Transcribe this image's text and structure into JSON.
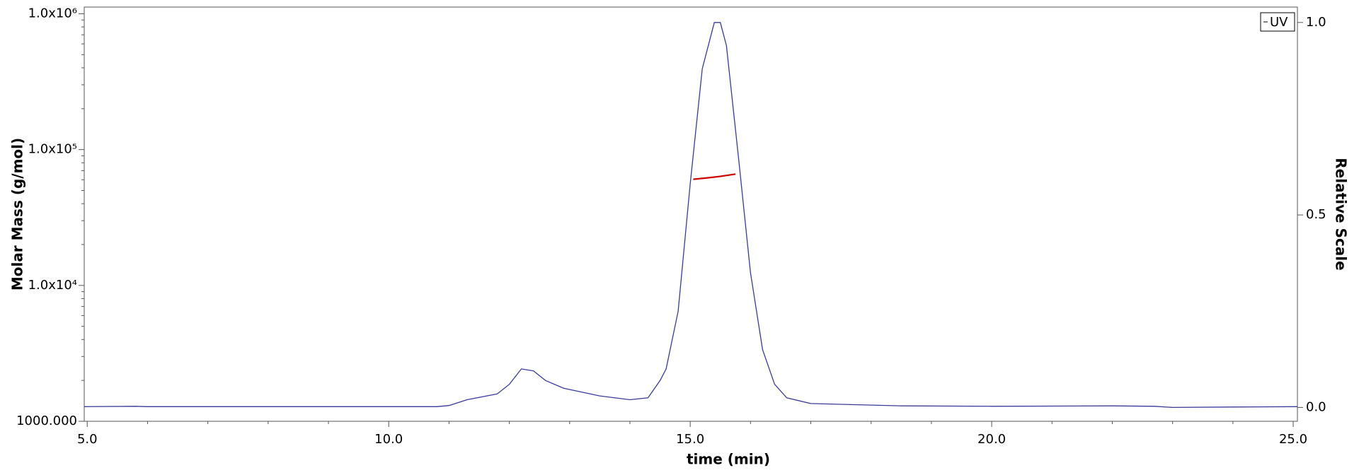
{
  "chart_data": {
    "type": "line",
    "xlabel": "time (min)",
    "ylabel": "Molar Mass (g/mol)",
    "y2label": "Relative Scale",
    "xlim": [
      4.95,
      25.07
    ],
    "xticks": [
      {
        "value": 5,
        "label": "5.0"
      },
      {
        "value": 10,
        "label": "10.0"
      },
      {
        "value": 15,
        "label": "15.0"
      },
      {
        "value": 20,
        "label": "20.0"
      },
      {
        "value": 25,
        "label": "25.0"
      }
    ],
    "xminorticks": [
      6,
      7,
      8,
      9,
      11,
      12,
      13,
      14,
      16,
      17,
      18,
      19,
      21,
      22,
      23,
      24
    ],
    "ylim": [
      1000,
      1120000
    ],
    "yscale": "log",
    "yticks": [
      {
        "value": 1000,
        "label": "1000.000"
      },
      {
        "value": 10000,
        "label": "1.0x10⁴"
      },
      {
        "value": 100000,
        "label": "1.0x10⁵"
      },
      {
        "value": 1000000,
        "label": "1.0x10⁶"
      }
    ],
    "yminorticks": [
      2000,
      3000,
      4000,
      5000,
      6000,
      7000,
      8000,
      9000,
      20000,
      30000,
      40000,
      50000,
      60000,
      70000,
      80000,
      90000,
      200000,
      300000,
      400000,
      500000,
      600000,
      700000,
      800000,
      900000
    ],
    "y2lim": [
      -0.036,
      1.04
    ],
    "y2ticks": [
      {
        "value": 0,
        "label": "0.0"
      },
      {
        "value": 0.5,
        "label": "0.5"
      },
      {
        "value": 1,
        "label": "1.0"
      }
    ],
    "legend": "upper right",
    "series": [
      {
        "name": "UV",
        "color": "#3a3a9a",
        "axis": "y2",
        "x": [
          4.95,
          5.8,
          6.0,
          10.8,
          11.0,
          11.3,
          11.8,
          12.0,
          12.2,
          12.4,
          12.6,
          12.9,
          13.5,
          14.0,
          14.3,
          14.5,
          14.6,
          14.8,
          15.0,
          15.2,
          15.4,
          15.5,
          15.6,
          15.8,
          16.0,
          16.2,
          16.4,
          16.6,
          17.0,
          17.5,
          18.5,
          20.0,
          22.0,
          22.7,
          23.0,
          24.0,
          25.07
        ],
        "values": [
          0.002,
          0.003,
          0.002,
          0.002,
          0.005,
          0.02,
          0.035,
          0.06,
          0.1,
          0.095,
          0.07,
          0.05,
          0.03,
          0.02,
          0.025,
          0.07,
          0.1,
          0.25,
          0.58,
          0.88,
          1.0,
          1.0,
          0.94,
          0.65,
          0.35,
          0.15,
          0.06,
          0.025,
          0.01,
          0.008,
          0.004,
          0.003,
          0.004,
          0.003,
          0.0,
          0.001,
          0.002
        ]
      },
      {
        "color": "#d00000",
        "x": [
          15.05,
          15.3,
          15.5,
          15.75
        ],
        "values": [
          60500,
          62000,
          63500,
          66000
        ]
      }
    ]
  }
}
